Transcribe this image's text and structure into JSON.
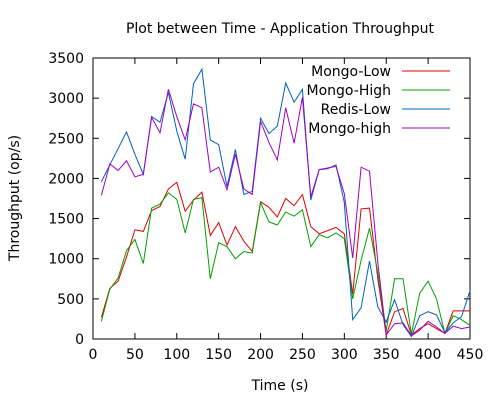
{
  "chart_data": {
    "type": "line",
    "title": "Plot between Time - Application Throughput",
    "xlabel": "Time (s)",
    "ylabel": "Throughput (op/s)",
    "xlim": [
      0,
      450
    ],
    "ylim": [
      0,
      3500
    ],
    "xticks": [
      0,
      50,
      100,
      150,
      200,
      250,
      300,
      350,
      400,
      450
    ],
    "yticks": [
      0,
      500,
      1000,
      1500,
      2000,
      2500,
      3000,
      3500
    ],
    "grid": false,
    "legend_position": "top-right",
    "x": [
      10,
      20,
      30,
      40,
      50,
      60,
      70,
      80,
      90,
      100,
      110,
      120,
      130,
      140,
      150,
      160,
      170,
      180,
      190,
      200,
      210,
      220,
      230,
      240,
      250,
      260,
      270,
      280,
      290,
      300,
      310,
      320,
      330,
      340,
      350,
      360,
      370,
      380,
      390,
      400,
      410,
      420,
      430,
      440,
      450
    ],
    "series": [
      {
        "name": "Mongo-Low",
        "color": "#e00000",
        "values": [
          270,
          630,
          720,
          1020,
          1360,
          1340,
          1600,
          1650,
          1870,
          1950,
          1590,
          1730,
          1830,
          1290,
          1450,
          1170,
          1400,
          1220,
          1090,
          1710,
          1640,
          1520,
          1750,
          1660,
          1800,
          1400,
          1310,
          1350,
          1390,
          1310,
          560,
          1620,
          1630,
          750,
          50,
          340,
          380,
          50,
          130,
          190,
          130,
          70,
          350,
          350,
          350
        ]
      },
      {
        "name": "Mongo-High",
        "color": "#00a000",
        "values": [
          220,
          620,
          760,
          1100,
          1240,
          940,
          1630,
          1680,
          1820,
          1740,
          1320,
          1740,
          1760,
          750,
          1200,
          1150,
          1000,
          1090,
          1070,
          1700,
          1460,
          1420,
          1580,
          1530,
          1610,
          1150,
          1300,
          1260,
          1320,
          1250,
          500,
          980,
          1380,
          830,
          100,
          750,
          750,
          60,
          570,
          720,
          500,
          70,
          290,
          240,
          170
        ]
      },
      {
        "name": "Redis-Low",
        "color": "#0060c0",
        "values": [
          1960,
          2170,
          2370,
          2580,
          2300,
          2050,
          2770,
          2700,
          3070,
          2590,
          2240,
          3180,
          3360,
          2480,
          2420,
          1900,
          2360,
          1800,
          1840,
          2750,
          2560,
          2650,
          3190,
          2950,
          3110,
          1730,
          2110,
          2120,
          2170,
          1700,
          240,
          390,
          970,
          400,
          210,
          490,
          180,
          30,
          290,
          340,
          300,
          80,
          200,
          280,
          600
        ]
      },
      {
        "name": "Mongo-high",
        "color": "#a000c0",
        "values": [
          1790,
          2180,
          2100,
          2220,
          2020,
          2050,
          2760,
          2570,
          3110,
          2770,
          2480,
          2930,
          2880,
          2080,
          2140,
          1860,
          2300,
          1870,
          1800,
          2710,
          2450,
          2230,
          2880,
          2440,
          3010,
          1770,
          2110,
          2130,
          2150,
          1810,
          1010,
          2140,
          2090,
          960,
          50,
          190,
          200,
          40,
          110,
          220,
          150,
          70,
          160,
          130,
          150
        ]
      }
    ]
  }
}
